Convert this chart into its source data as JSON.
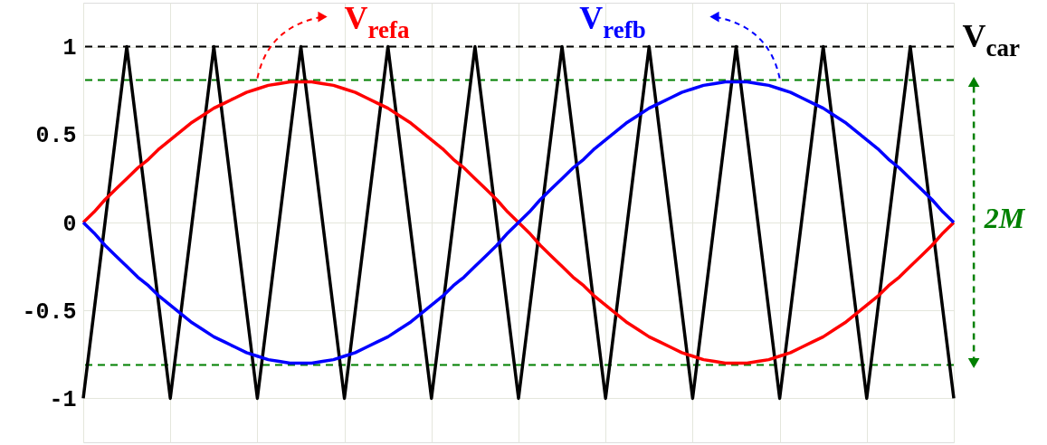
{
  "chart_data": {
    "type": "line",
    "categories": [
      null,
      null,
      null,
      null,
      null,
      null,
      null,
      null,
      null,
      null,
      null,
      null,
      null,
      null,
      null,
      null,
      null,
      null,
      null,
      null,
      null,
      null,
      null,
      null,
      null,
      null,
      null,
      null,
      null,
      null,
      null,
      null,
      null,
      null,
      null,
      null,
      null,
      null,
      null,
      null,
      null,
      null,
      null,
      null,
      null,
      null,
      null,
      null,
      null,
      null,
      null,
      null,
      null,
      null,
      null,
      null,
      null,
      null,
      null,
      null,
      null,
      null,
      null,
      null,
      null,
      null,
      null,
      null,
      null,
      null,
      null,
      null,
      null,
      null,
      null,
      null,
      null,
      null,
      null,
      null,
      null
    ],
    "ylim": [
      -1.25,
      1.25
    ],
    "yticks": [
      -1,
      -0.5,
      0,
      0.5,
      1
    ],
    "tick_labels": "y",
    "grid": true,
    "marker": "none",
    "line_style": "solid",
    "series": [
      {
        "name": "V$_{car}$",
        "color": "#000000",
        "values": [
          -1,
          -0.5,
          0,
          0.5,
          1,
          0.5,
          0,
          -0.5,
          -1,
          -0.5,
          0,
          0.5,
          1,
          0.5,
          0,
          -0.5,
          -1,
          -0.5,
          0,
          0.5,
          1,
          0.5,
          0,
          -0.5,
          -1,
          -0.5,
          0,
          0.5,
          1,
          0.5,
          0,
          -0.5,
          -1,
          -0.5,
          0,
          0.5,
          1,
          0.5,
          0,
          -0.5,
          -1,
          -0.5,
          0,
          0.5,
          1,
          0.5,
          0,
          -0.5,
          -1,
          -0.5,
          0,
          0.5,
          1,
          0.5,
          0,
          -0.5,
          -1,
          -0.5,
          0,
          0.5,
          1,
          0.5,
          0,
          -0.5,
          -1,
          -0.5,
          0,
          0.5,
          1,
          0.5,
          0,
          -0.5,
          -1,
          -0.5,
          0,
          0.5,
          1,
          0.5,
          0,
          -0.5,
          -1
        ]
      },
      {
        "name": "V$_{refa}$",
        "color": "#ff0000",
        "values": [
          0,
          0.06,
          0.13,
          0.19,
          0.25,
          0.31,
          0.36,
          0.42,
          0.47,
          0.52,
          0.57,
          0.61,
          0.65,
          0.68,
          0.71,
          0.74,
          0.76,
          0.78,
          0.79,
          0.8,
          0.8,
          0.8,
          0.79,
          0.78,
          0.76,
          0.74,
          0.71,
          0.68,
          0.65,
          0.61,
          0.57,
          0.52,
          0.47,
          0.42,
          0.36,
          0.31,
          0.25,
          0.19,
          0.13,
          0.06,
          0,
          -0.06,
          -0.13,
          -0.19,
          -0.25,
          -0.31,
          -0.36,
          -0.42,
          -0.47,
          -0.52,
          -0.57,
          -0.61,
          -0.65,
          -0.68,
          -0.71,
          -0.74,
          -0.76,
          -0.78,
          -0.79,
          -0.8,
          -0.8,
          -0.8,
          -0.79,
          -0.78,
          -0.76,
          -0.74,
          -0.71,
          -0.68,
          -0.65,
          -0.61,
          -0.57,
          -0.52,
          -0.47,
          -0.42,
          -0.36,
          -0.31,
          -0.25,
          -0.19,
          -0.13,
          -0.06,
          0
        ]
      },
      {
        "name": "V$_{refb}$",
        "color": "#0000ff",
        "values": [
          0,
          -0.06,
          -0.13,
          -0.19,
          -0.25,
          -0.31,
          -0.36,
          -0.42,
          -0.47,
          -0.52,
          -0.57,
          -0.61,
          -0.65,
          -0.68,
          -0.71,
          -0.74,
          -0.76,
          -0.78,
          -0.79,
          -0.8,
          -0.8,
          -0.8,
          -0.79,
          -0.78,
          -0.76,
          -0.74,
          -0.71,
          -0.68,
          -0.65,
          -0.61,
          -0.57,
          -0.52,
          -0.47,
          -0.42,
          -0.36,
          -0.31,
          -0.25,
          -0.19,
          -0.13,
          -0.06,
          0,
          0.06,
          0.13,
          0.19,
          0.25,
          0.31,
          0.36,
          0.42,
          0.47,
          0.52,
          0.57,
          0.61,
          0.65,
          0.68,
          0.71,
          0.74,
          0.76,
          0.78,
          0.79,
          0.8,
          0.8,
          0.8,
          0.79,
          0.78,
          0.76,
          0.74,
          0.71,
          0.68,
          0.65,
          0.61,
          0.57,
          0.52,
          0.47,
          0.42,
          0.36,
          0.31,
          0.25,
          0.19,
          0.13,
          0.06,
          0
        ]
      }
    ],
    "ref_lines": [
      {
        "axis": "y",
        "value": 1,
        "color": "#000000",
        "line_style": "dashed"
      },
      {
        "axis": "y",
        "value": 0.81,
        "color": "#008000",
        "line_style": "dashed"
      },
      {
        "axis": "y",
        "value": -0.81,
        "color": "#008000",
        "line_style": "dashed"
      }
    ],
    "annotations": [
      "2M"
    ]
  }
}
